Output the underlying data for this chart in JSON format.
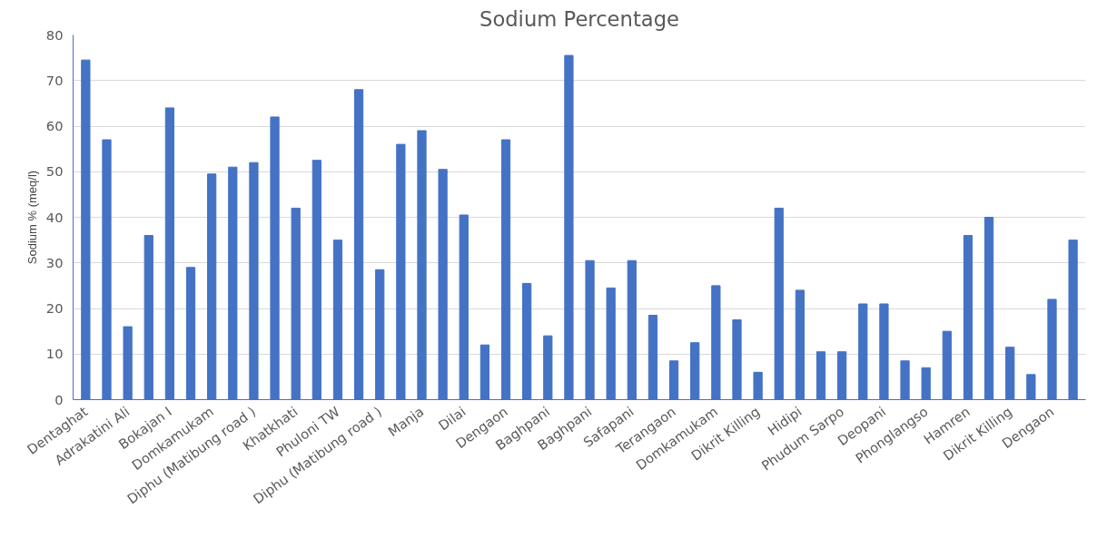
{
  "chart_data": {
    "type": "bar",
    "title": "Sodium Percentage",
    "ylabel": "Sodium % (meq/l)",
    "categories": [
      "Dentaghat",
      null,
      "Adrakatini Ali",
      null,
      "Bokajan I",
      null,
      "Domkamukam",
      null,
      "Diphu (Matibung road )",
      null,
      "Khatkhati",
      null,
      "Phuloni TW",
      null,
      "Diphu (Matibung road )",
      null,
      "Manja",
      null,
      "Dilai",
      null,
      "Dengaon",
      null,
      "Baghpani",
      null,
      "Baghpani",
      null,
      "Safapani",
      null,
      "Terangaon",
      null,
      "Domkamukam",
      null,
      "Dikrit Killing",
      null,
      "Hidipi",
      null,
      "Phudum Sarpo",
      null,
      "Deopani",
      null,
      "Phonglangso",
      null,
      "Hamren",
      null,
      "Dikrit Killing",
      null,
      "Dengaon",
      null
    ],
    "values": [
      74.5,
      57,
      16,
      36,
      64,
      29,
      49.5,
      51,
      52,
      62,
      42,
      52.5,
      35,
      68,
      28.5,
      56,
      59,
      50.5,
      40.5,
      12,
      57,
      25.5,
      14,
      75.5,
      30.5,
      24.5,
      30.5,
      18.5,
      8.5,
      12.5,
      25,
      17.5,
      6,
      42,
      24,
      10.5,
      10.5,
      21,
      21,
      8.5,
      7,
      15,
      36,
      40,
      11.5,
      5.5,
      22,
      35
    ],
    "color": "#4472c4",
    "ylim": [
      0,
      80
    ],
    "yticks": [
      0,
      10,
      20,
      30,
      40,
      50,
      60,
      70,
      80
    ],
    "grid": "y"
  }
}
